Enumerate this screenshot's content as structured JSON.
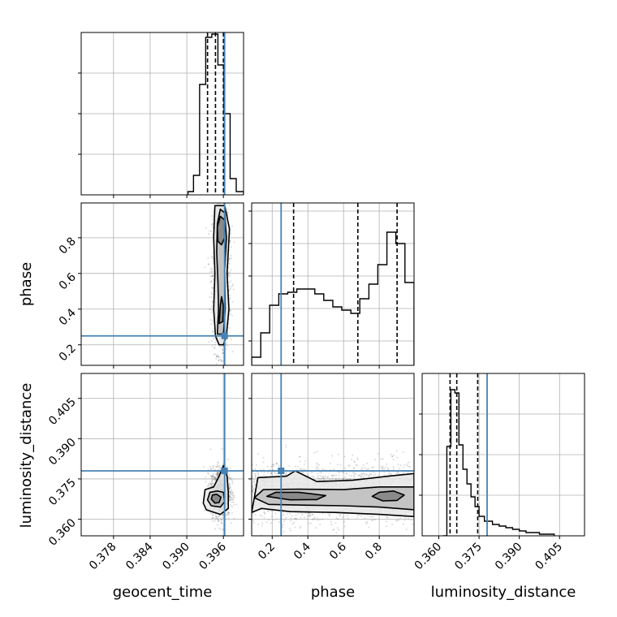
{
  "chart_data": {
    "type": "corner",
    "parameters": [
      "geocent_time",
      "phase",
      "luminosity_distance"
    ],
    "truths": {
      "geocent_time": 0.3962,
      "phase": 0.25,
      "luminosity_distance": 0.378
    },
    "colors": {
      "truth": "#4682b4",
      "hist": "#000000",
      "grid": "#b0b0b0"
    },
    "axes": {
      "geocent_time": {
        "range": [
          0.3727,
          0.3993
        ],
        "ticks": [
          "0.378",
          "0.384",
          "0.390",
          "0.396"
        ]
      },
      "phase": {
        "range": [
          0.085,
          0.995
        ],
        "ticks_x": [
          "0.2",
          "0.4",
          "0.6",
          "0.8"
        ],
        "ticks_y": [
          "0.2",
          "0.4",
          "0.6",
          "0.8"
        ]
      },
      "luminosity_distance": {
        "range": [
          0.3538,
          0.4143
        ],
        "ticks": [
          "0.360",
          "0.375",
          "0.390",
          "0.405"
        ]
      }
    },
    "hist_geocent_time": {
      "edges": [
        0.3902,
        0.3911,
        0.3921,
        0.3931,
        0.3941,
        0.3951,
        0.3961,
        0.3971,
        0.3981,
        0.3993
      ],
      "counts": [
        2,
        12,
        68,
        97,
        99,
        80,
        50,
        10,
        2
      ],
      "quantiles": [
        0.3934,
        0.3947,
        0.396
      ],
      "ylim": [
        0,
        100
      ],
      "grid_y": [
        25,
        50,
        75
      ]
    },
    "hist_phase": {
      "edges": [
        0.085,
        0.136,
        0.186,
        0.237,
        0.287,
        0.338,
        0.388,
        0.439,
        0.489,
        0.54,
        0.59,
        0.641,
        0.691,
        0.742,
        0.792,
        0.843,
        0.893,
        0.944,
        0.995
      ],
      "counts": [
        5,
        20,
        37,
        44,
        45,
        47,
        47,
        44,
        40,
        36,
        34,
        32,
        41,
        50,
        62,
        82,
        75,
        51
      ],
      "quantiles": [
        0.32,
        0.68,
        0.9
      ],
      "ylim": [
        0,
        100
      ],
      "grid_y": [
        15,
        35,
        55,
        75,
        95
      ]
    },
    "hist_luminosity_distance": {
      "edges": [
        0.3615,
        0.363,
        0.3645,
        0.366,
        0.3675,
        0.369,
        0.3705,
        0.372,
        0.3735,
        0.375,
        0.377,
        0.38,
        0.3825,
        0.385,
        0.3875,
        0.39,
        0.3925,
        0.3975,
        0.403
      ],
      "counts": [
        0,
        55,
        90,
        88,
        56,
        41,
        32,
        24,
        18,
        12,
        9,
        7,
        6,
        5,
        4,
        3,
        2,
        1
      ],
      "quantiles": [
        0.3642,
        0.3667,
        0.3745
      ],
      "ylim": [
        0,
        100
      ],
      "grid_y": [
        25,
        50,
        75
      ]
    },
    "scatter_phase_vs_geocent_time": {
      "note": "density contours; x = geocent_time, y = phase",
      "samples_center": [
        0.3955,
        0.55
      ],
      "contours": [
        {
          "level": 1,
          "points": [
            [
              0.3953,
              0.2
            ],
            [
              0.3947,
              0.25
            ],
            [
              0.3944,
              0.4
            ],
            [
              0.3946,
              0.6
            ],
            [
              0.3944,
              0.8
            ],
            [
              0.3946,
              0.98
            ],
            [
              0.3962,
              0.98
            ],
            [
              0.397,
              0.85
            ],
            [
              0.3966,
              0.6
            ],
            [
              0.3969,
              0.4
            ],
            [
              0.3965,
              0.25
            ],
            [
              0.396,
              0.2
            ]
          ]
        },
        {
          "level": 2,
          "points": [
            [
              0.395,
              0.26
            ],
            [
              0.3952,
              0.4
            ],
            [
              0.3951,
              0.56
            ],
            [
              0.3949,
              0.72
            ],
            [
              0.395,
              0.88
            ],
            [
              0.3955,
              0.96
            ],
            [
              0.3962,
              0.94
            ],
            [
              0.3965,
              0.8
            ],
            [
              0.3962,
              0.62
            ],
            [
              0.3963,
              0.4
            ],
            [
              0.396,
              0.26
            ]
          ]
        },
        {
          "level": 3,
          "points": [
            [
              0.3953,
              0.32
            ],
            [
              0.3955,
              0.42
            ],
            [
              0.3957,
              0.47
            ],
            [
              0.396,
              0.42
            ],
            [
              0.3959,
              0.33
            ]
          ]
        },
        {
          "level": 3,
          "points": [
            [
              0.3951,
              0.78
            ],
            [
              0.395,
              0.86
            ],
            [
              0.3955,
              0.92
            ],
            [
              0.3962,
              0.9
            ],
            [
              0.3962,
              0.8
            ],
            [
              0.3957,
              0.76
            ]
          ]
        }
      ]
    },
    "scatter_luminosity_distance_vs_geocent_time": {
      "note": "x = geocent_time, y = luminosity_distance",
      "contours": [
        {
          "level": 1,
          "points": [
            [
              0.3927,
              0.366
            ],
            [
              0.3932,
              0.3635
            ],
            [
              0.3955,
              0.3618
            ],
            [
              0.3968,
              0.364
            ],
            [
              0.3968,
              0.37
            ],
            [
              0.3966,
              0.376
            ],
            [
              0.396,
              0.38
            ],
            [
              0.3953,
              0.376
            ],
            [
              0.3944,
              0.372
            ],
            [
              0.393,
              0.371
            ]
          ]
        },
        {
          "level": 2,
          "points": [
            [
              0.3934,
              0.3672
            ],
            [
              0.394,
              0.365
            ],
            [
              0.3955,
              0.3645
            ],
            [
              0.3962,
              0.3665
            ],
            [
              0.396,
              0.37
            ],
            [
              0.395,
              0.3705
            ],
            [
              0.3938,
              0.37
            ]
          ]
        },
        {
          "level": 3,
          "points": [
            [
              0.394,
              0.3675
            ],
            [
              0.3946,
              0.366
            ],
            [
              0.3953,
              0.3662
            ],
            [
              0.3956,
              0.3682
            ],
            [
              0.3949,
              0.3693
            ],
            [
              0.3942,
              0.369
            ]
          ]
        }
      ]
    },
    "scatter_luminosity_distance_vs_phase": {
      "note": "x = phase, y = luminosity_distance",
      "contours": [
        {
          "level": 1,
          "points": [
            [
              0.085,
              0.3625
            ],
            [
              0.14,
              0.364
            ],
            [
              0.3,
              0.3628
            ],
            [
              0.55,
              0.3625
            ],
            [
              0.8,
              0.3618
            ],
            [
              0.995,
              0.361
            ],
            [
              0.995,
              0.377
            ],
            [
              0.85,
              0.376
            ],
            [
              0.65,
              0.3745
            ],
            [
              0.45,
              0.374
            ],
            [
              0.33,
              0.378
            ],
            [
              0.28,
              0.376
            ],
            [
              0.12,
              0.3755
            ]
          ]
        },
        {
          "level": 2,
          "points": [
            [
              0.1,
              0.368
            ],
            [
              0.18,
              0.3655
            ],
            [
              0.4,
              0.3652
            ],
            [
              0.6,
              0.365
            ],
            [
              0.8,
              0.3645
            ],
            [
              0.995,
              0.3635
            ],
            [
              0.995,
              0.372
            ],
            [
              0.8,
              0.372
            ],
            [
              0.6,
              0.371
            ],
            [
              0.35,
              0.3712
            ],
            [
              0.15,
              0.371
            ]
          ]
        },
        {
          "level": 3,
          "points": [
            [
              0.17,
              0.3685
            ],
            [
              0.3,
              0.3672
            ],
            [
              0.45,
              0.3673
            ],
            [
              0.5,
              0.3688
            ],
            [
              0.35,
              0.37
            ],
            [
              0.22,
              0.37
            ]
          ]
        },
        {
          "level": 3,
          "points": [
            [
              0.76,
              0.3685
            ],
            [
              0.82,
              0.3668
            ],
            [
              0.9,
              0.367
            ],
            [
              0.94,
              0.369
            ],
            [
              0.88,
              0.3705
            ],
            [
              0.8,
              0.37
            ]
          ]
        }
      ]
    }
  }
}
